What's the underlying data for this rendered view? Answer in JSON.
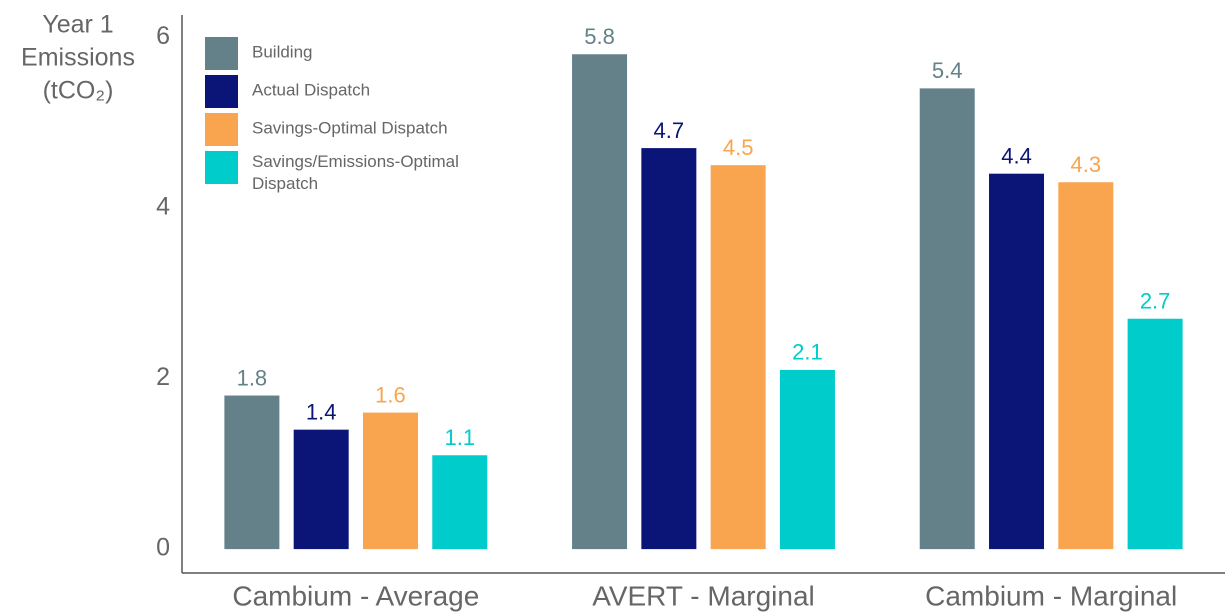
{
  "chart_data": {
    "type": "bar",
    "y_label": [
      "Year 1",
      "Emissions",
      "(tCO₂)"
    ],
    "categories": [
      "Cambium - Average",
      "AVERT - Marginal",
      "Cambium - Marginal"
    ],
    "series": [
      {
        "name": "Building",
        "color": "#64818a",
        "values": [
          1.8,
          5.8,
          5.4
        ]
      },
      {
        "name": "Actual Dispatch",
        "color": "#0b1577",
        "values": [
          1.4,
          4.7,
          4.4
        ]
      },
      {
        "name": "Savings-Optimal Dispatch",
        "color": "#f9a54f",
        "values": [
          1.6,
          4.5,
          4.3
        ]
      },
      {
        "name": "Savings/Emissions-Optimal Dispatch",
        "color": "#00cccc",
        "values": [
          1.1,
          2.1,
          2.7
        ]
      }
    ],
    "ylim": [
      -0.28,
      6.26
    ],
    "yticks": [
      0,
      2,
      4,
      6
    ],
    "legend": "top-left"
  }
}
